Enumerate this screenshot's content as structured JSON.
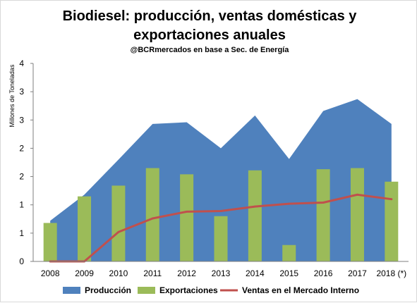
{
  "chart_data": {
    "type": "area",
    "title": "Biodiesel: producción, ventas domésticas y",
    "title_line2": "exportaciones anuales",
    "subtitle": "@BCRmercados en base a Sec. de Energía",
    "ylabel": "Millones de Toneladas",
    "xlabel": "",
    "categories": [
      "2008",
      "2009",
      "2010",
      "2011",
      "2012",
      "2013",
      "2014",
      "2015",
      "2016",
      "2017",
      "2018 (*)"
    ],
    "y_tick_labels": [
      "0",
      "1",
      "1",
      "2",
      "2",
      "3",
      "3",
      "4"
    ],
    "ylim": [
      0,
      3.5
    ],
    "grid": false,
    "legend_position": "bottom",
    "series": [
      {
        "name": "Producción",
        "type": "area",
        "color": "#4F81BD",
        "values": [
          0.72,
          1.18,
          1.8,
          2.43,
          2.46,
          2.0,
          2.58,
          1.81,
          2.66,
          2.87,
          2.43
        ]
      },
      {
        "name": "Exportaciones",
        "type": "bar",
        "color": "#9BBB59",
        "values": [
          0.68,
          1.15,
          1.34,
          1.65,
          1.54,
          0.8,
          1.61,
          0.29,
          1.63,
          1.65,
          1.41
        ]
      },
      {
        "name": "Ventas en el Mercado Interno",
        "type": "line",
        "color": "#C0504D",
        "values": [
          0.0,
          0.0,
          0.52,
          0.76,
          0.88,
          0.89,
          0.97,
          1.02,
          1.04,
          1.18,
          1.1
        ]
      }
    ]
  }
}
